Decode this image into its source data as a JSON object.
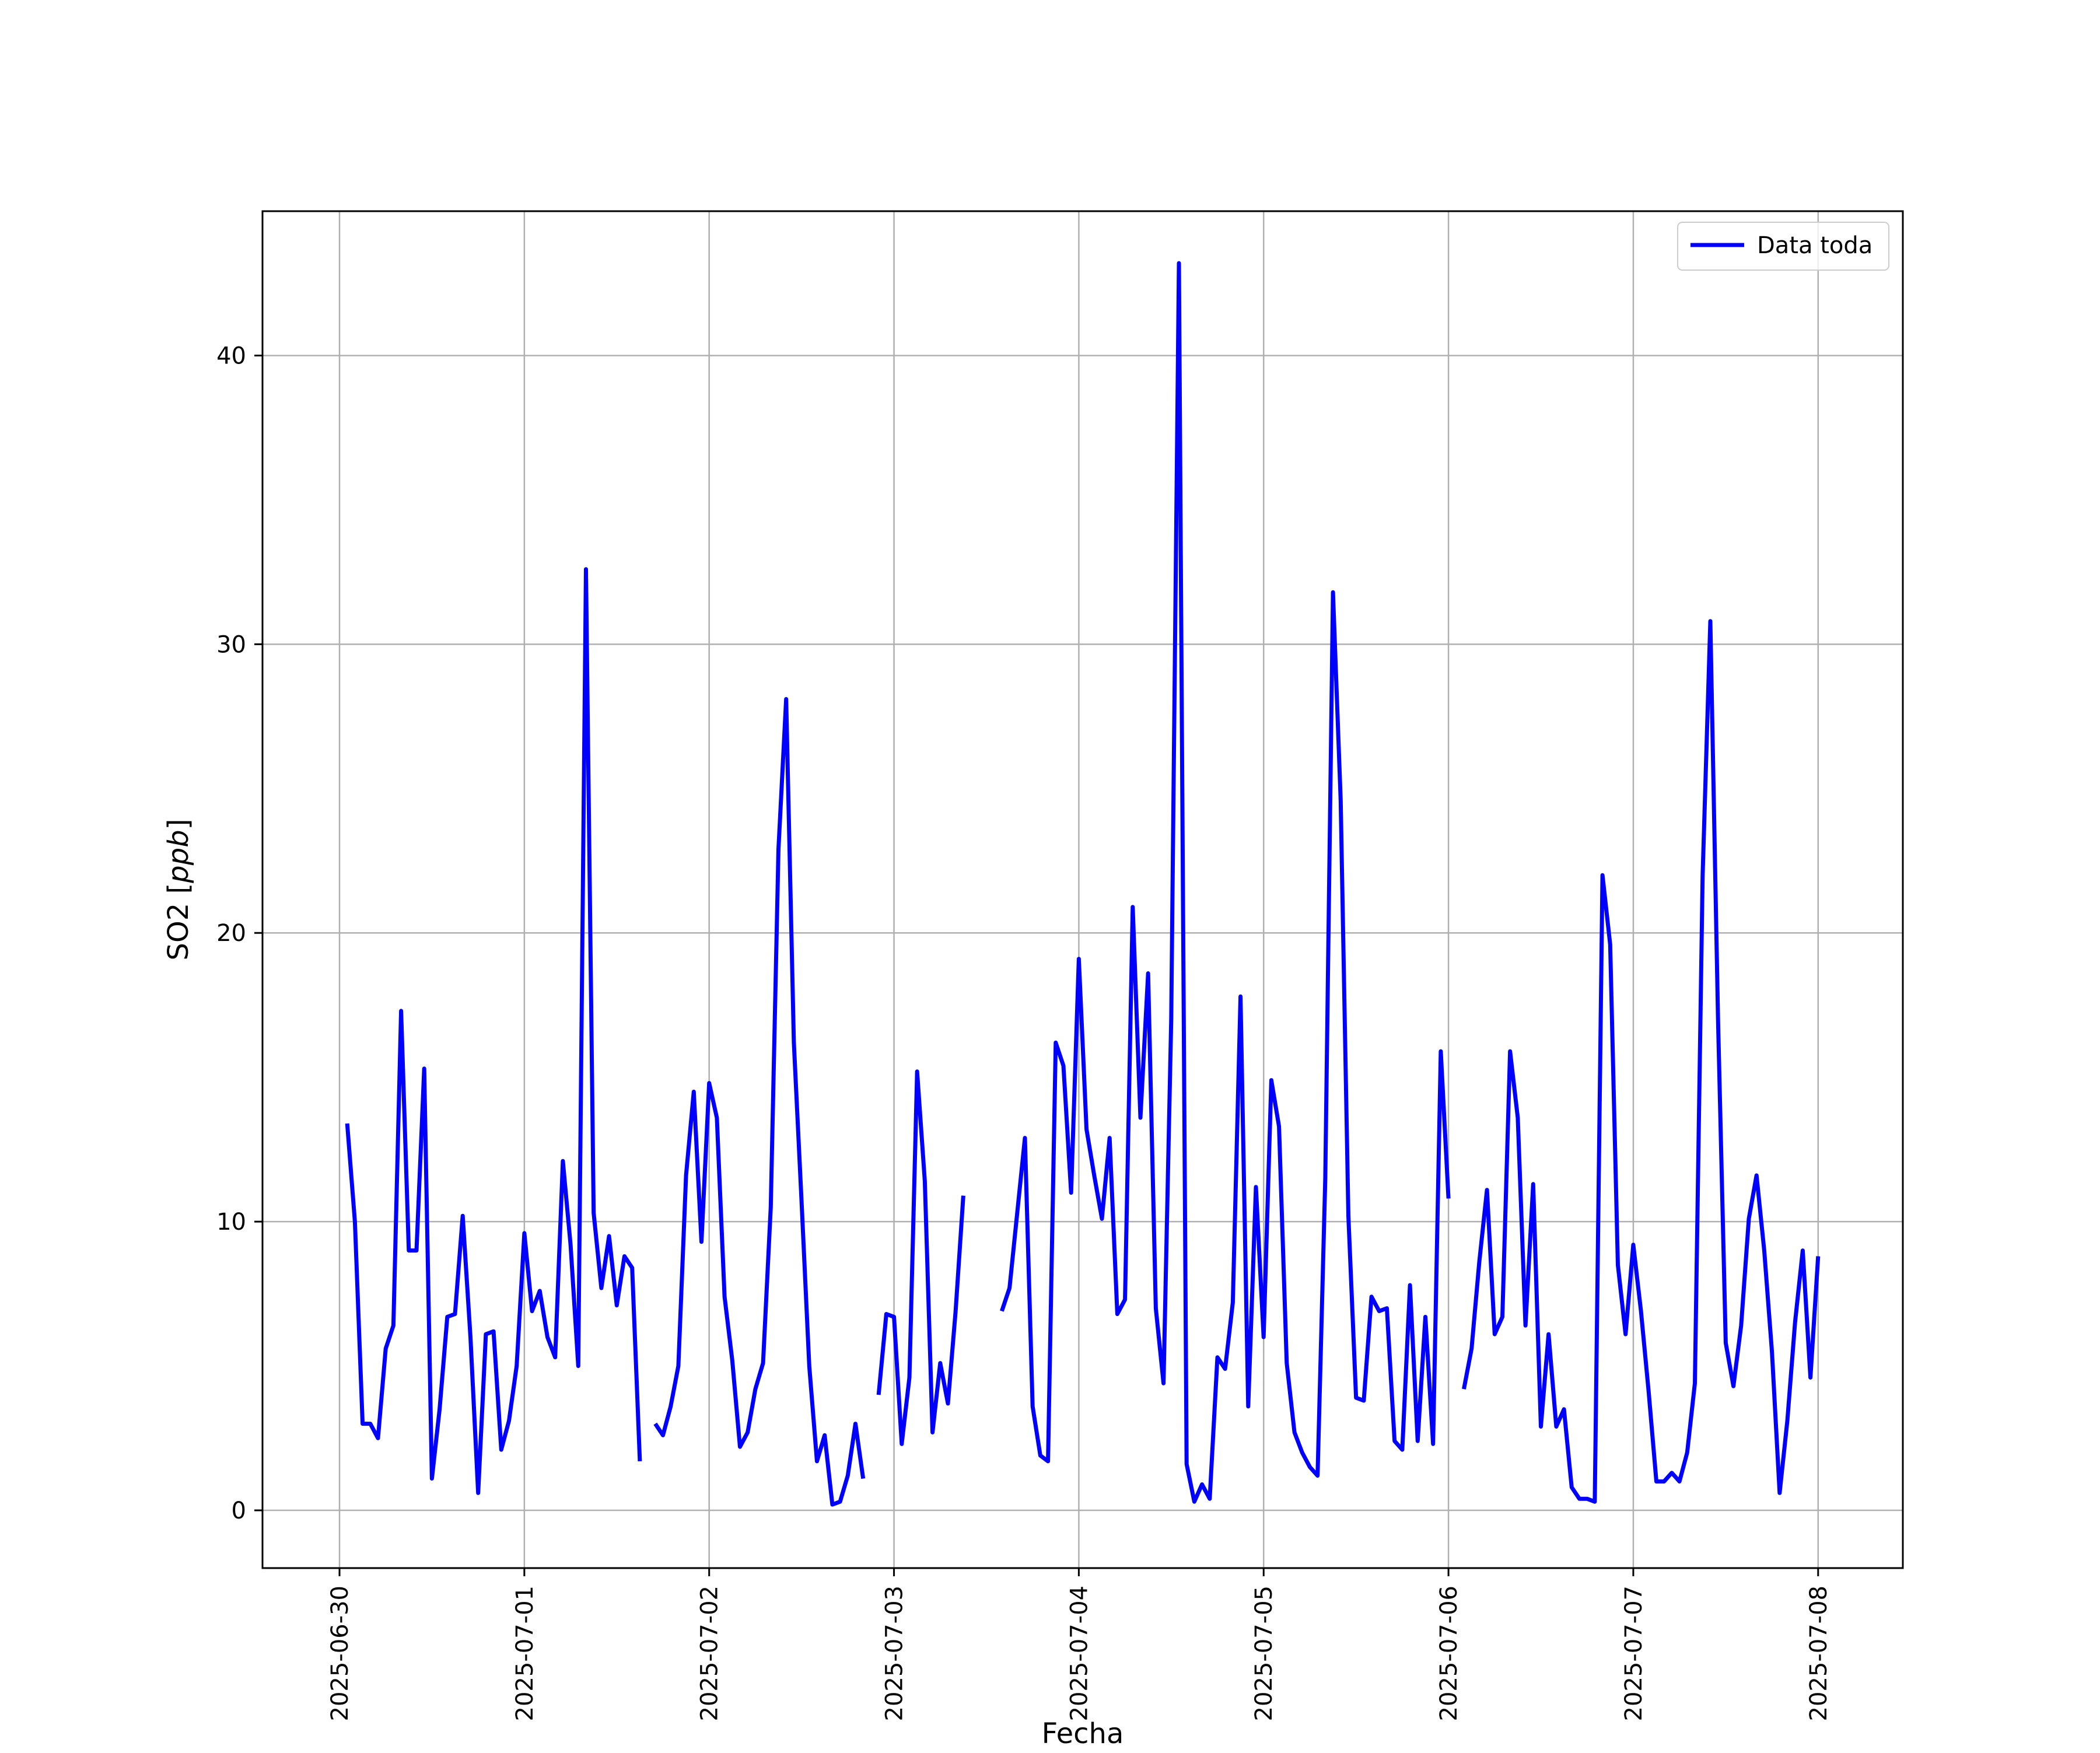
{
  "chart_data": {
    "type": "line",
    "title": "",
    "xlabel": "Fecha",
    "ylabel": "SO2 [ppb]",
    "ylabel_main": "SO2 [",
    "ylabel_unit": "ppb",
    "ylabel_close": "]",
    "x_axis_type": "date",
    "xlim": [
      "2025-06-29T14:00",
      "2025-07-08T11:00"
    ],
    "ylim": [
      -2,
      45
    ],
    "x_ticks": [
      "2025-06-30",
      "2025-07-01",
      "2025-07-02",
      "2025-07-03",
      "2025-07-04",
      "2025-07-05",
      "2025-07-06",
      "2025-07-07",
      "2025-07-08"
    ],
    "y_ticks": [
      0,
      10,
      20,
      30,
      40
    ],
    "grid": true,
    "legend": {
      "position": "top-right",
      "entries": [
        "Data toda"
      ]
    },
    "colors": {
      "series": "#0000ff",
      "grid": "#b0b0b0",
      "axes": "#000000"
    },
    "series": [
      {
        "name": "Data toda",
        "segments": [
          [
            [
              "2025-06-30T01:00",
              13.4
            ],
            [
              "2025-06-30T02:00",
              10.0
            ],
            [
              "2025-06-30T03:00",
              3.0
            ],
            [
              "2025-06-30T04:00",
              3.0
            ],
            [
              "2025-06-30T05:00",
              2.5
            ],
            [
              "2025-06-30T06:00",
              5.6
            ],
            [
              "2025-06-30T07:00",
              6.4
            ],
            [
              "2025-06-30T08:00",
              17.3
            ],
            [
              "2025-06-30T09:00",
              9.0
            ],
            [
              "2025-06-30T10:00",
              9.0
            ],
            [
              "2025-06-30T11:00",
              15.3
            ],
            [
              "2025-06-30T12:00",
              1.1
            ],
            [
              "2025-06-30T13:00",
              3.5
            ],
            [
              "2025-06-30T14:00",
              6.7
            ],
            [
              "2025-06-30T15:00",
              6.8
            ],
            [
              "2025-06-30T16:00",
              10.2
            ],
            [
              "2025-06-30T17:00",
              6.0
            ],
            [
              "2025-06-30T18:00",
              0.6
            ],
            [
              "2025-06-30T19:00",
              6.1
            ],
            [
              "2025-06-30T20:00",
              6.2
            ],
            [
              "2025-06-30T21:00",
              2.1
            ],
            [
              "2025-06-30T22:00",
              3.1
            ],
            [
              "2025-06-30T23:00",
              5.0
            ],
            [
              "2025-07-01T00:00",
              9.6
            ],
            [
              "2025-07-01T01:00",
              6.9
            ],
            [
              "2025-07-01T02:00",
              7.6
            ],
            [
              "2025-07-01T03:00",
              6.0
            ],
            [
              "2025-07-01T04:00",
              5.3
            ],
            [
              "2025-07-01T05:00",
              12.1
            ],
            [
              "2025-07-01T06:00",
              9.2
            ],
            [
              "2025-07-01T07:00",
              5.0
            ],
            [
              "2025-07-01T08:00",
              32.6
            ],
            [
              "2025-07-01T09:00",
              10.3
            ],
            [
              "2025-07-01T10:00",
              7.7
            ],
            [
              "2025-07-01T11:00",
              9.5
            ],
            [
              "2025-07-01T12:00",
              7.1
            ],
            [
              "2025-07-01T13:00",
              8.8
            ],
            [
              "2025-07-01T14:00",
              8.4
            ],
            [
              "2025-07-01T15:00",
              1.7
            ]
          ],
          [
            [
              "2025-07-01T17:00",
              3.0
            ],
            [
              "2025-07-01T18:00",
              2.6
            ],
            [
              "2025-07-01T19:00",
              3.6
            ],
            [
              "2025-07-01T20:00",
              5.0
            ],
            [
              "2025-07-01T21:00",
              11.6
            ],
            [
              "2025-07-01T22:00",
              14.5
            ],
            [
              "2025-07-01T23:00",
              9.3
            ],
            [
              "2025-07-02T00:00",
              14.8
            ],
            [
              "2025-07-02T01:00",
              13.6
            ],
            [
              "2025-07-02T02:00",
              7.4
            ],
            [
              "2025-07-02T03:00",
              5.2
            ],
            [
              "2025-07-02T04:00",
              2.2
            ],
            [
              "2025-07-02T05:00",
              2.7
            ],
            [
              "2025-07-02T06:00",
              4.2
            ],
            [
              "2025-07-02T07:00",
              5.1
            ],
            [
              "2025-07-02T08:00",
              10.5
            ],
            [
              "2025-07-02T09:00",
              22.9
            ],
            [
              "2025-07-02T10:00",
              28.1
            ],
            [
              "2025-07-02T11:00",
              16.2
            ],
            [
              "2025-07-02T12:00",
              10.7
            ],
            [
              "2025-07-02T13:00",
              5.0
            ],
            [
              "2025-07-02T14:00",
              1.7
            ],
            [
              "2025-07-02T15:00",
              2.6
            ],
            [
              "2025-07-02T16:00",
              0.2
            ],
            [
              "2025-07-02T17:00",
              0.3
            ],
            [
              "2025-07-02T18:00",
              1.2
            ],
            [
              "2025-07-02T19:00",
              3.0
            ],
            [
              "2025-07-02T20:00",
              1.1
            ]
          ],
          [
            [
              "2025-07-02T22:00",
              4.0
            ],
            [
              "2025-07-02T23:00",
              6.8
            ],
            [
              "2025-07-03T00:00",
              6.7
            ],
            [
              "2025-07-03T01:00",
              2.3
            ],
            [
              "2025-07-03T02:00",
              4.6
            ],
            [
              "2025-07-03T03:00",
              15.2
            ],
            [
              "2025-07-03T04:00",
              11.4
            ],
            [
              "2025-07-03T05:00",
              2.7
            ],
            [
              "2025-07-03T06:00",
              5.1
            ],
            [
              "2025-07-03T07:00",
              3.7
            ],
            [
              "2025-07-03T08:00",
              6.9
            ],
            [
              "2025-07-03T09:00",
              10.9
            ]
          ],
          [
            [
              "2025-07-03T14:00",
              6.9
            ],
            [
              "2025-07-03T15:00",
              7.7
            ],
            [
              "2025-07-03T16:00",
              10.3
            ],
            [
              "2025-07-03T17:00",
              12.9
            ],
            [
              "2025-07-03T18:00",
              3.6
            ],
            [
              "2025-07-03T19:00",
              1.9
            ],
            [
              "2025-07-03T20:00",
              1.7
            ],
            [
              "2025-07-03T21:00",
              16.2
            ],
            [
              "2025-07-03T22:00",
              15.4
            ],
            [
              "2025-07-03T23:00",
              11.0
            ],
            [
              "2025-07-04T00:00",
              19.1
            ],
            [
              "2025-07-04T01:00",
              13.2
            ],
            [
              "2025-07-04T02:00",
              11.6
            ],
            [
              "2025-07-04T03:00",
              10.1
            ],
            [
              "2025-07-04T04:00",
              12.9
            ],
            [
              "2025-07-04T05:00",
              6.8
            ],
            [
              "2025-07-04T06:00",
              7.3
            ],
            [
              "2025-07-04T07:00",
              20.9
            ],
            [
              "2025-07-04T08:00",
              13.6
            ],
            [
              "2025-07-04T09:00",
              18.6
            ],
            [
              "2025-07-04T10:00",
              7.0
            ],
            [
              "2025-07-04T11:00",
              4.4
            ],
            [
              "2025-07-04T12:00",
              17.0
            ],
            [
              "2025-07-04T13:00",
              43.2
            ],
            [
              "2025-07-04T14:00",
              1.6
            ],
            [
              "2025-07-04T15:00",
              0.3
            ],
            [
              "2025-07-04T16:00",
              0.9
            ],
            [
              "2025-07-04T17:00",
              0.4
            ],
            [
              "2025-07-04T18:00",
              5.3
            ],
            [
              "2025-07-04T19:00",
              4.9
            ],
            [
              "2025-07-04T20:00",
              7.2
            ],
            [
              "2025-07-04T21:00",
              17.8
            ],
            [
              "2025-07-04T22:00",
              3.6
            ],
            [
              "2025-07-04T23:00",
              11.2
            ],
            [
              "2025-07-05T00:00",
              6.0
            ],
            [
              "2025-07-05T01:00",
              14.9
            ],
            [
              "2025-07-05T02:00",
              13.3
            ],
            [
              "2025-07-05T03:00",
              5.1
            ],
            [
              "2025-07-05T04:00",
              2.7
            ],
            [
              "2025-07-05T05:00",
              2.0
            ],
            [
              "2025-07-05T06:00",
              1.5
            ],
            [
              "2025-07-05T07:00",
              1.2
            ],
            [
              "2025-07-05T08:00",
              11.5
            ],
            [
              "2025-07-05T09:00",
              31.8
            ],
            [
              "2025-07-05T10:00",
              24.6
            ],
            [
              "2025-07-05T11:00",
              10.2
            ],
            [
              "2025-07-05T12:00",
              3.9
            ],
            [
              "2025-07-05T13:00",
              3.8
            ],
            [
              "2025-07-05T14:00",
              7.4
            ],
            [
              "2025-07-05T15:00",
              6.9
            ],
            [
              "2025-07-05T16:00",
              7.0
            ],
            [
              "2025-07-05T17:00",
              2.4
            ],
            [
              "2025-07-05T18:00",
              2.1
            ],
            [
              "2025-07-05T19:00",
              7.8
            ],
            [
              "2025-07-05T20:00",
              2.4
            ],
            [
              "2025-07-05T21:00",
              6.7
            ],
            [
              "2025-07-05T22:00",
              2.3
            ],
            [
              "2025-07-05T23:00",
              15.9
            ],
            [
              "2025-07-06T00:00",
              10.8
            ]
          ],
          [
            [
              "2025-07-06T02:00",
              4.2
            ],
            [
              "2025-07-06T03:00",
              5.6
            ],
            [
              "2025-07-06T04:00",
              8.6
            ],
            [
              "2025-07-06T05:00",
              11.1
            ],
            [
              "2025-07-06T06:00",
              6.1
            ],
            [
              "2025-07-06T07:00",
              6.7
            ],
            [
              "2025-07-06T08:00",
              15.9
            ],
            [
              "2025-07-06T09:00",
              13.6
            ],
            [
              "2025-07-06T10:00",
              6.4
            ],
            [
              "2025-07-06T11:00",
              11.3
            ],
            [
              "2025-07-06T12:00",
              2.9
            ],
            [
              "2025-07-06T13:00",
              6.1
            ],
            [
              "2025-07-06T14:00",
              2.9
            ],
            [
              "2025-07-06T15:00",
              3.5
            ],
            [
              "2025-07-06T16:00",
              0.8
            ],
            [
              "2025-07-06T17:00",
              0.4
            ],
            [
              "2025-07-06T18:00",
              0.4
            ],
            [
              "2025-07-06T19:00",
              0.3
            ],
            [
              "2025-07-06T20:00",
              22.0
            ],
            [
              "2025-07-06T21:00",
              19.6
            ],
            [
              "2025-07-06T22:00",
              8.5
            ],
            [
              "2025-07-06T23:00",
              6.1
            ],
            [
              "2025-07-07T00:00",
              9.2
            ],
            [
              "2025-07-07T01:00",
              6.9
            ],
            [
              "2025-07-07T02:00",
              4.1
            ],
            [
              "2025-07-07T03:00",
              1.0
            ],
            [
              "2025-07-07T04:00",
              1.0
            ],
            [
              "2025-07-07T05:00",
              1.3
            ],
            [
              "2025-07-07T06:00",
              1.0
            ],
            [
              "2025-07-07T07:00",
              2.0
            ],
            [
              "2025-07-07T08:00",
              4.4
            ],
            [
              "2025-07-07T09:00",
              22.0
            ],
            [
              "2025-07-07T10:00",
              30.8
            ],
            [
              "2025-07-07T11:00",
              17.0
            ],
            [
              "2025-07-07T12:00",
              5.8
            ],
            [
              "2025-07-07T13:00",
              4.3
            ],
            [
              "2025-07-07T14:00",
              6.4
            ],
            [
              "2025-07-07T15:00",
              10.1
            ],
            [
              "2025-07-07T16:00",
              11.6
            ],
            [
              "2025-07-07T17:00",
              9.0
            ],
            [
              "2025-07-07T18:00",
              5.5
            ],
            [
              "2025-07-07T19:00",
              0.6
            ],
            [
              "2025-07-07T20:00",
              3.1
            ],
            [
              "2025-07-07T21:00",
              6.5
            ],
            [
              "2025-07-07T22:00",
              9.0
            ],
            [
              "2025-07-07T23:00",
              4.6
            ],
            [
              "2025-07-08T00:00",
              8.8
            ]
          ]
        ]
      }
    ]
  }
}
